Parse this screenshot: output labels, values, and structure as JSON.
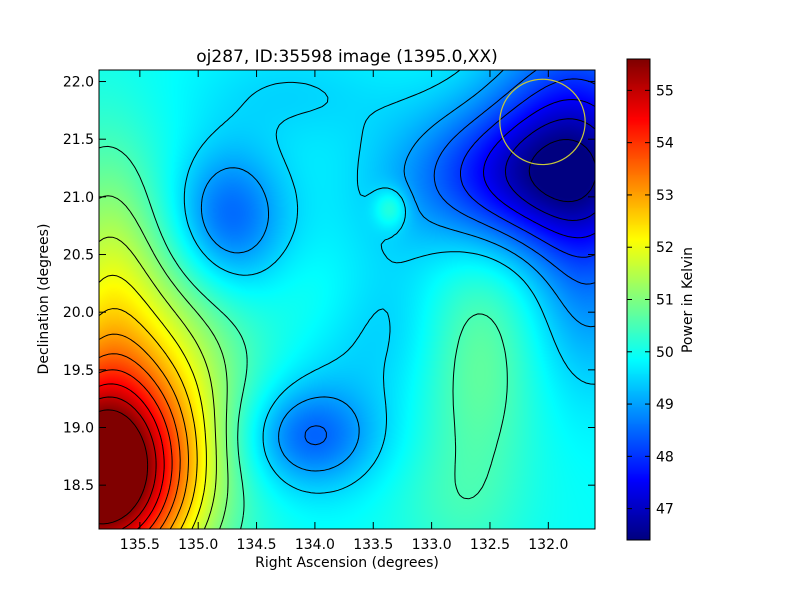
{
  "chart_data": {
    "type": "heatmap",
    "title": "oj287, ID:35598 image (1395.0,XX)",
    "xlabel": "Right Ascension (degrees)",
    "ylabel": "Declination (degrees)",
    "xlim": [
      135.85,
      131.6
    ],
    "ylim": [
      18.12,
      22.1
    ],
    "xticks": [
      135.5,
      135.0,
      134.5,
      134.0,
      133.5,
      133.0,
      132.5,
      132.0
    ],
    "xtick_labels": [
      "135.5",
      "135.0",
      "134.5",
      "134.0",
      "133.5",
      "133.0",
      "132.5",
      "132.0"
    ],
    "yticks": [
      18.5,
      19.0,
      19.5,
      20.0,
      20.5,
      21.0,
      21.5,
      22.0
    ],
    "ytick_labels": [
      "18.5",
      "19.0",
      "19.5",
      "20.0",
      "20.5",
      "21.0",
      "21.5",
      "22.0"
    ],
    "colorbar": {
      "label": "Power in Kelvin",
      "range": [
        46.4,
        55.6
      ],
      "ticks": [
        47,
        48,
        49,
        50,
        51,
        52,
        53,
        54,
        55
      ],
      "tick_labels": [
        "47",
        "48",
        "49",
        "50",
        "51",
        "52",
        "53",
        "54",
        "55"
      ],
      "colormap": "jet"
    },
    "field": {
      "base": 49.9,
      "components": [
        {
          "ra": 135.85,
          "dec": 18.55,
          "amp": 6.2,
          "s_ra": 0.55,
          "s_dec": 0.65
        },
        {
          "ra": 135.4,
          "dec": 19.6,
          "amp": 1.6,
          "s_ra": 0.6,
          "s_dec": 0.9
        },
        {
          "ra": 135.8,
          "dec": 20.3,
          "amp": 1.0,
          "s_ra": 0.3,
          "s_dec": 0.9
        },
        {
          "ra": 132.15,
          "dec": 21.15,
          "amp": -2.6,
          "s_ra": 0.75,
          "s_dec": 0.45
        },
        {
          "ra": 131.75,
          "dec": 21.8,
          "amp": -1.6,
          "s_ra": 0.5,
          "s_dec": 0.6
        },
        {
          "ra": 131.65,
          "dec": 20.35,
          "amp": -1.1,
          "s_ra": 0.35,
          "s_dec": 0.7
        },
        {
          "ra": 134.75,
          "dec": 20.8,
          "amp": -1.7,
          "s_ra": 0.35,
          "s_dec": 0.45
        },
        {
          "ra": 134.05,
          "dec": 18.92,
          "amp": -1.5,
          "s_ra": 0.4,
          "s_dec": 0.32
        },
        {
          "ra": 133.35,
          "dec": 20.9,
          "amp": 0.9,
          "s_ra": 0.1,
          "s_dec": 0.12
        },
        {
          "ra": 133.55,
          "dec": 19.9,
          "amp": -0.6,
          "s_ra": 0.5,
          "s_dec": 0.5
        },
        {
          "ra": 132.6,
          "dec": 19.6,
          "amp": 0.9,
          "s_ra": 0.35,
          "s_dec": 0.8
        },
        {
          "ra": 133.9,
          "dec": 20.1,
          "amp": 0.35,
          "s_ra": 0.35,
          "s_dec": 0.35
        },
        {
          "ra": 134.2,
          "dec": 21.9,
          "amp": -0.4,
          "s_ra": 0.6,
          "s_dec": 0.3
        },
        {
          "ra": 132.8,
          "dec": 18.3,
          "amp": 0.35,
          "s_ra": 0.4,
          "s_dec": 0.4
        }
      ],
      "contour_levels": [
        46.5,
        47,
        47.5,
        48,
        48.5,
        49,
        49.5,
        50.5,
        51,
        51.5,
        52,
        52.5,
        53,
        53.5,
        54,
        54.5,
        55,
        55.5
      ]
    },
    "marker": {
      "shape": "circle",
      "ra": 132.05,
      "dec": 21.65,
      "radius_deg": 0.37,
      "color": "#c8c83a"
    }
  }
}
